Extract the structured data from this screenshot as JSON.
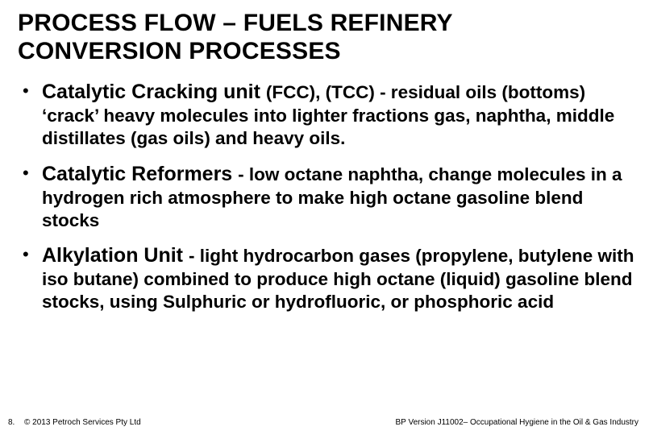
{
  "title_line1": "PROCESS FLOW – FUELS REFINERY",
  "title_line2": "CONVERSION PROCESSES",
  "bullets": [
    {
      "heavy": "Catalytic Cracking unit ",
      "rest": "(FCC),  (TCC) - residual oils (bottoms) ‘crack’ heavy molecules into lighter fractions gas, naphtha, middle distillates (gas oils) and heavy oils."
    },
    {
      "heavy": "Catalytic Reformers ",
      "rest": "- low octane naphtha, change molecules in a hydrogen rich atmosphere to make high octane gasoline blend stocks"
    },
    {
      "heavy": "Alkylation Unit ",
      "rest": "- light hydrocarbon gases (propylene, butylene with iso butane) combined to produce high octane (liquid) gasoline blend stocks, using Sulphuric or hydrofluoric, or phosphoric acid"
    }
  ],
  "footer": {
    "page": "8.",
    "copyright": "© 2013  Petroch Services Pty Ltd",
    "course": "BP Version J11002– Occupational Hygiene in the Oil & Gas Industry"
  },
  "colors": {
    "bg": "#ffffff",
    "text": "#000000"
  },
  "fonts": {
    "title_pt": 30,
    "body_pt": 22.5,
    "heavy_pt": 25,
    "footer_pt": 10
  }
}
